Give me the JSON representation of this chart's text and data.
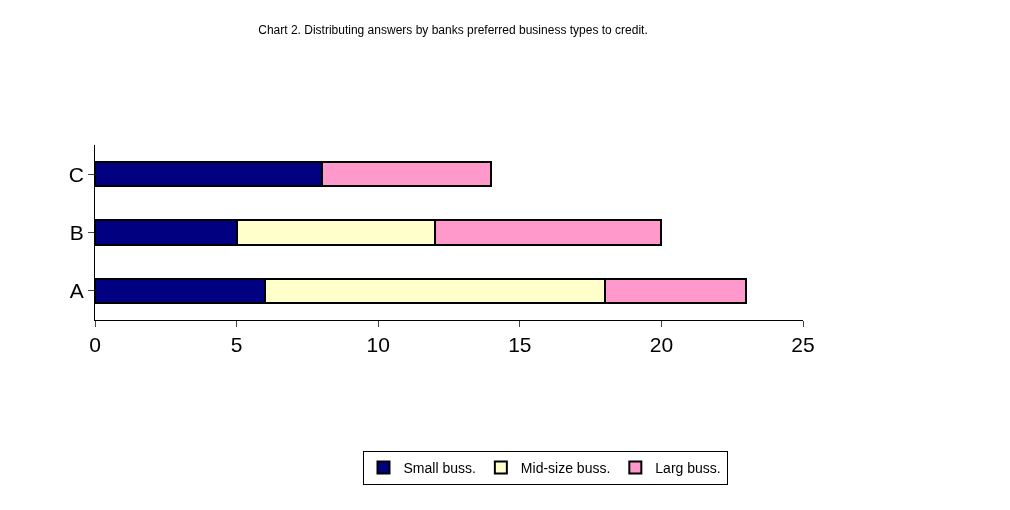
{
  "chart_data": {
    "type": "bar",
    "orientation": "horizontal",
    "stacked": true,
    "title": "Chart 2. Distributing answers by banks preferred business types to credit.",
    "categories": [
      "C",
      "B",
      "A"
    ],
    "series": [
      {
        "name": "Small buss.",
        "color": "#000080",
        "values": [
          8,
          5,
          6
        ]
      },
      {
        "name": "Mid-size buss.",
        "color": "#ffffcc",
        "values": [
          0,
          7,
          12
        ]
      },
      {
        "name": "Larg buss.",
        "color": "#ff99cc",
        "values": [
          6,
          8,
          5
        ]
      }
    ],
    "xlim": [
      0,
      25
    ],
    "xticks": [
      0,
      5,
      10,
      15,
      20,
      25
    ],
    "legend": "bottom"
  }
}
